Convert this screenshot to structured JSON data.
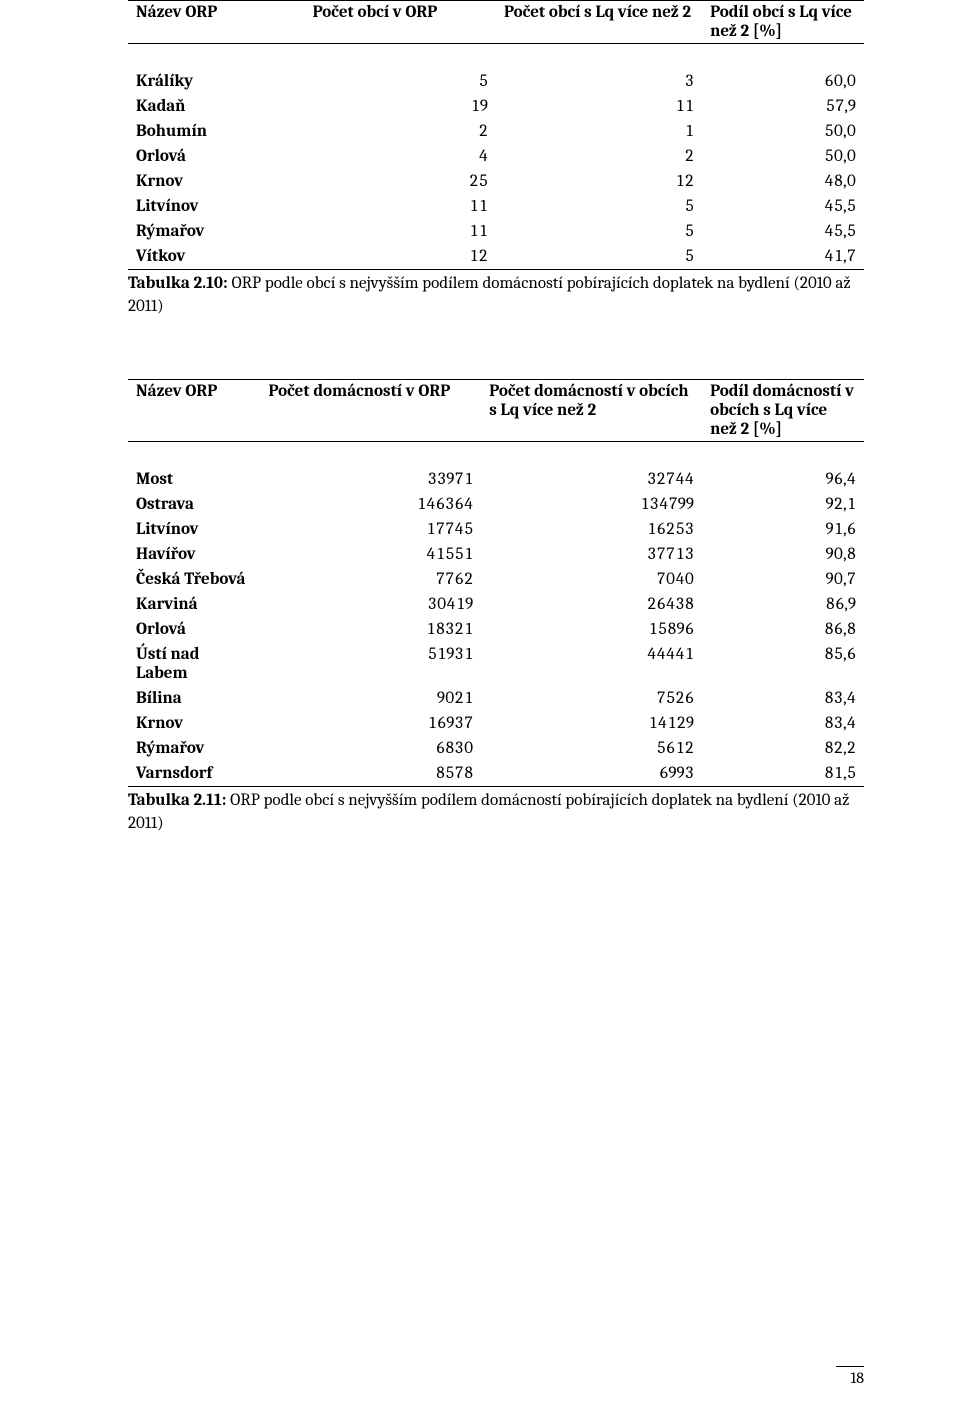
{
  "page_number": "18",
  "table1": {
    "headers": [
      "Název ORP",
      "Počet obcí v ORP",
      "Počet obcí s Lq více než 2",
      "Podíl obcí s Lq více než 2 [%]"
    ],
    "rows": [
      [
        "Králíky",
        "5",
        "3",
        "60,0"
      ],
      [
        "Kadaň",
        "19",
        "11",
        "57,9"
      ],
      [
        "Bohumín",
        "2",
        "1",
        "50,0"
      ],
      [
        "Orlová",
        "4",
        "2",
        "50,0"
      ],
      [
        "Krnov",
        "25",
        "12",
        "48,0"
      ],
      [
        "Litvínov",
        "11",
        "5",
        "45,5"
      ],
      [
        "Rýmařov",
        "11",
        "5",
        "45,5"
      ],
      [
        "Vítkov",
        "12",
        "5",
        "41,7"
      ]
    ],
    "caption_bold": "Tabulka 2.10:",
    "caption_rest": " ORP podle obcí s nejvyšším podílem domácností pobírajících doplatek na bydlení (2010 až 2011)"
  },
  "table2": {
    "headers": [
      "Název ORP",
      "Počet domácností v ORP",
      "Počet domácností v obcích s Lq více než 2",
      "Podíl domácností v obcích s Lq více než 2 [%]"
    ],
    "rows": [
      [
        "Most",
        "33971",
        "32744",
        "96,4"
      ],
      [
        "Ostrava",
        "146364",
        "134799",
        "92,1"
      ],
      [
        "Litvínov",
        "17745",
        "16253",
        "91,6"
      ],
      [
        "Havířov",
        "41551",
        "37713",
        "90,8"
      ],
      [
        "Česká Třebová",
        "7762",
        "7040",
        "90,7"
      ],
      [
        "Karviná",
        "30419",
        "26438",
        "86,9"
      ],
      [
        "Orlová",
        "18321",
        "15896",
        "86,8"
      ],
      [
        "Ústí nad Labem",
        "51931",
        "44441",
        "85,6"
      ],
      [
        "Bílina",
        "9021",
        "7526",
        "83,4"
      ],
      [
        "Krnov",
        "16937",
        "14129",
        "83,4"
      ],
      [
        "Rýmařov",
        "6830",
        "5612",
        "82,2"
      ],
      [
        "Varnsdorf",
        "8578",
        "6993",
        "81,5"
      ]
    ],
    "caption_bold": "Tabulka 2.11:",
    "caption_rest": " ORP podle obcí s nejvyšším podílem domácností pobírajících doplatek na bydlení (2010 až 2011)"
  }
}
